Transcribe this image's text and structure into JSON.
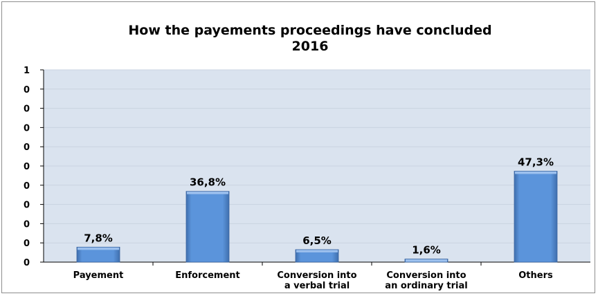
{
  "chart_data": {
    "type": "bar",
    "title": "How the payements proceedings have concluded",
    "subtitle": "2016",
    "categories": [
      [
        "Payement"
      ],
      [
        "Enforcement"
      ],
      [
        "Conversion into",
        "a verbal trial"
      ],
      [
        "Conversion into",
        "an ordinary trial"
      ],
      [
        "Others"
      ]
    ],
    "values": [
      7.8,
      36.8,
      6.5,
      1.6,
      47.3
    ],
    "value_labels": [
      "7,8%",
      "36,8%",
      "6,5%",
      "1,6%",
      "47,3%"
    ],
    "y_tick_labels": [
      "0",
      "0",
      "0",
      "0",
      "0",
      "0",
      "0",
      "0",
      "0",
      "0",
      "1"
    ],
    "ylim": [
      0,
      100
    ],
    "grid": true,
    "colors": {
      "plot_bg": "#dae3ef",
      "bar_fill": "#5b94db",
      "bar_top": "#9cc0ee",
      "bar_side": "#3f6fae",
      "grid": "#c9d3e0"
    }
  }
}
